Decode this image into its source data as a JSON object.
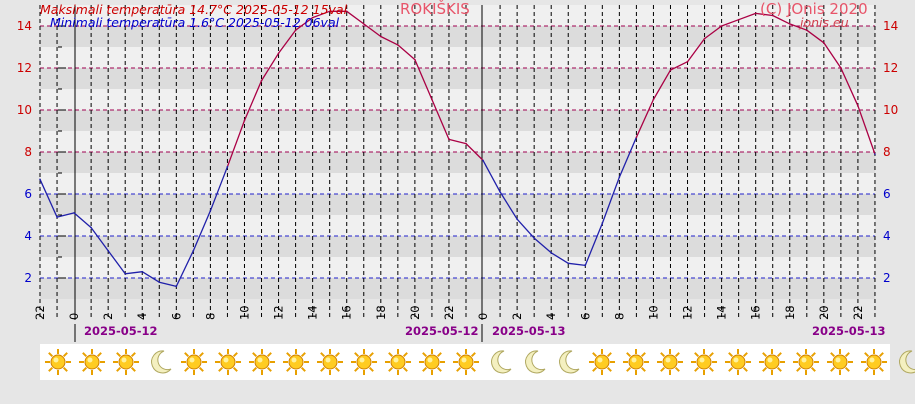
{
  "header": {
    "max_text": "Maksimali temperatūra 14.7°C 2025-05-12 15val",
    "min_text": "Minimali temperatūra 1.6°C 2025-05-12 06val",
    "station": "ROKIŠKIS",
    "copyright": "(C) JOnis 2020",
    "site": "jonis.eu"
  },
  "dates": {
    "d1_start": "2025-05-12",
    "d1_end": "2025-05-12",
    "d2_start": "2025-05-13",
    "d2_end": "2025-05-13"
  },
  "colors": {
    "background": "#e6e6e6",
    "band_light": "#f0f0f0",
    "band_dark": "#dcdcdc",
    "warm_line": "#aa0044",
    "cold_line": "#2020aa",
    "warm_grid": "#a00050",
    "cold_grid": "#2020cc",
    "label_red": "#cc0000",
    "label_blue": "#0000cc",
    "date_purple": "#880088"
  },
  "chart_data": {
    "type": "line",
    "title": "",
    "xlabel": "",
    "ylabel": "",
    "ylim": [
      1,
      15
    ],
    "yticks": [
      2,
      4,
      6,
      8,
      10,
      12,
      14
    ],
    "xtick_labels": [
      "22",
      "0",
      "2",
      "4",
      "6",
      "8",
      "10",
      "12",
      "14",
      "16",
      "18",
      "20",
      "22",
      "0",
      "2",
      "4",
      "6",
      "8",
      "10",
      "12",
      "14",
      "16",
      "18",
      "20",
      "22"
    ],
    "grid": true,
    "series": [
      {
        "name": "",
        "x_hours_from_start": [
          0,
          1,
          2,
          3,
          4,
          5,
          6,
          7,
          8,
          9,
          10,
          11,
          12,
          13,
          14,
          15,
          16,
          17,
          18,
          19,
          20,
          21,
          22,
          23,
          24,
          25,
          26,
          27,
          28,
          29,
          30,
          31,
          32,
          33,
          34,
          35,
          36,
          37,
          38,
          39,
          40,
          41,
          42,
          43,
          44,
          45,
          46,
          47,
          48,
          49
        ],
        "values": [
          6.7,
          4.9,
          5.1,
          4.4,
          3.3,
          2.2,
          2.3,
          1.8,
          1.6,
          3.3,
          5.2,
          7.3,
          9.5,
          11.4,
          12.7,
          13.8,
          14.4,
          14.7,
          14.7,
          14.1,
          13.5,
          13.1,
          12.4,
          10.5,
          8.6,
          8.4,
          7.6,
          6.1,
          4.8,
          3.9,
          3.2,
          2.7,
          2.6,
          4.6,
          6.8,
          8.7,
          10.5,
          11.9,
          12.3,
          13.4,
          14.0,
          14.3,
          14.6,
          14.5,
          14.1,
          13.8,
          13.2,
          12.0,
          10.2,
          7.9
        ]
      }
    ]
  },
  "weather_icons": [
    "sun-icon",
    "sun-icon",
    "sun-icon",
    "moon-icon",
    "sun-icon",
    "sun-icon",
    "sun-icon",
    "sun-icon",
    "sun-icon",
    "sun-icon",
    "sun-icon",
    "sun-icon",
    "sun-icon",
    "moon-icon",
    "moon-icon",
    "moon-icon",
    "sun-icon",
    "sun-icon",
    "sun-icon",
    "sun-icon",
    "sun-icon",
    "sun-icon",
    "sun-icon",
    "sun-icon",
    "sun-icon",
    "moon-icon"
  ]
}
